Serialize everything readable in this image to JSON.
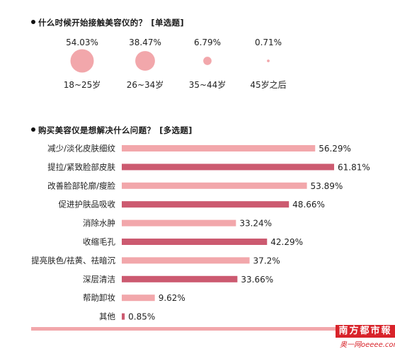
{
  "q1": {
    "title": "什么时候开始接触美容仪的？",
    "tag": "[单选题]"
  },
  "q2": {
    "title": "购买美容仪是想解决什么问题？",
    "tag": "[多选题]"
  },
  "colors": {
    "bubble": "#f2a7ab",
    "bar_light": "#f2a7ab",
    "bar_dark": "#cc5a70",
    "footer": "#f2a7ab",
    "logo_bg": "#d8232a"
  },
  "logo": {
    "text": "南方都市報",
    "site": "奥一网oeeee.com"
  },
  "chart_data": [
    {
      "type": "bubble",
      "title": "什么时候开始接触美容仪的？",
      "categories": [
        "18~25岁",
        "26~34岁",
        "35~44岁",
        "45岁之后"
      ],
      "values": [
        54.03,
        38.47,
        6.79,
        0.71
      ],
      "labels": [
        "54.03%",
        "38.47%",
        "6.79%",
        "0.71%"
      ],
      "unit": "%"
    },
    {
      "type": "bar",
      "orientation": "horizontal",
      "title": "购买美容仪是想解决什么问题？",
      "categories": [
        "减少/淡化皮肤细纹",
        "提拉/紧致脸部皮肤",
        "改善脸部轮廓/瘦脸",
        "促进护肤品吸收",
        "消除水肿",
        "收缩毛孔",
        "提亮肤色/祛黄、祛暗沉",
        "深层清洁",
        "帮助卸妆",
        "其他"
      ],
      "values": [
        56.29,
        61.81,
        53.89,
        48.66,
        33.24,
        42.29,
        37.2,
        33.66,
        9.62,
        0.85
      ],
      "labels": [
        "56.29%",
        "61.81%",
        "53.89%",
        "48.66%",
        "33.24%",
        "42.29%",
        "37.2%",
        "33.66%",
        "9.62%",
        "0.85%"
      ],
      "bar_colors": [
        "#f2a7ab",
        "#cc5a70",
        "#f2a7ab",
        "#cc5a70",
        "#f2a7ab",
        "#cc5a70",
        "#f2a7ab",
        "#cc5a70",
        "#f2a7ab",
        "#cc5a70"
      ],
      "unit": "%"
    }
  ]
}
